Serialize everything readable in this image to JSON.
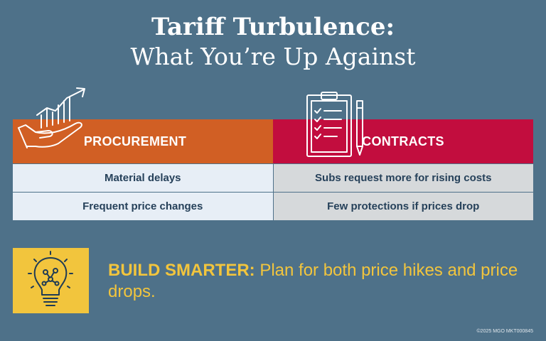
{
  "title": {
    "line1": "Tariff Turbulence:",
    "line2": "What You’re Up Against"
  },
  "table": {
    "headers": {
      "procurement": "PROCUREMENT",
      "contracts": "CONTRACTS"
    },
    "rows": [
      {
        "procurement": "Material delays",
        "contracts": "Subs request more for rising costs"
      },
      {
        "procurement": "Frequent price changes",
        "contracts": "Few protections if prices drop"
      }
    ]
  },
  "tip": {
    "label": "BUILD SMARTER:",
    "text": "Plan for both price hikes and price drops."
  },
  "footer": "©2025 MGO  MKT000845",
  "icons": {
    "procurement": "hand-growth-chart-icon",
    "contracts": "clipboard-checklist-icon",
    "tip": "lightbulb-idea-icon"
  },
  "colors": {
    "background": "#4e7189",
    "procurement_header": "#d15f24",
    "contracts_header": "#c20d3e",
    "accent": "#f2c53d"
  }
}
